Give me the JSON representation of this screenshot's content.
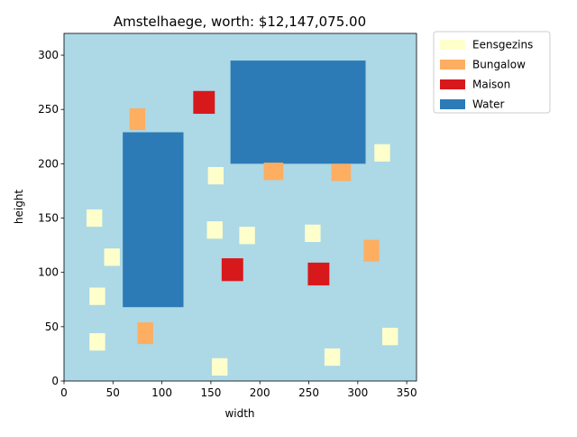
{
  "chart_data": {
    "type": "map",
    "title": "Amstelhaege, worth: $12,147,075.00",
    "xlabel": "width",
    "ylabel": "height",
    "xlim": [
      0,
      360
    ],
    "ylim": [
      0,
      320
    ],
    "xticks": [
      0,
      50,
      100,
      150,
      200,
      250,
      300,
      350
    ],
    "yticks": [
      0,
      50,
      100,
      150,
      200,
      250,
      300
    ],
    "background_color": "#add8e6",
    "legend_position": "outside-top-right",
    "legend": [
      {
        "label": "Eensgezins",
        "color": "#ffffcc"
      },
      {
        "label": "Bungalow",
        "color": "#fdae61"
      },
      {
        "label": "Maison",
        "color": "#d7191c"
      },
      {
        "label": "Water",
        "color": "#2c7bb6"
      }
    ],
    "water": [
      {
        "x": 60,
        "y": 68,
        "width": 62,
        "height": 161
      },
      {
        "x": 170,
        "y": 200,
        "width": 138,
        "height": 95
      }
    ],
    "houses": [
      {
        "type": "Eensgezins",
        "x": 23,
        "y": 142,
        "width": 16,
        "height": 16
      },
      {
        "type": "Eensgezins",
        "x": 41,
        "y": 106,
        "width": 16,
        "height": 16
      },
      {
        "type": "Eensgezins",
        "x": 26,
        "y": 70,
        "width": 16,
        "height": 16
      },
      {
        "type": "Eensgezins",
        "x": 26,
        "y": 28,
        "width": 16,
        "height": 16
      },
      {
        "type": "Eensgezins",
        "x": 147,
        "y": 181,
        "width": 16,
        "height": 16
      },
      {
        "type": "Eensgezins",
        "x": 146,
        "y": 131,
        "width": 16,
        "height": 16
      },
      {
        "type": "Eensgezins",
        "x": 179,
        "y": 126,
        "width": 16,
        "height": 16
      },
      {
        "type": "Eensgezins",
        "x": 151,
        "y": 5,
        "width": 16,
        "height": 16
      },
      {
        "type": "Eensgezins",
        "x": 246,
        "y": 128,
        "width": 16,
        "height": 16
      },
      {
        "type": "Eensgezins",
        "x": 266,
        "y": 14,
        "width": 16,
        "height": 16
      },
      {
        "type": "Eensgezins",
        "x": 317,
        "y": 202,
        "width": 16,
        "height": 16
      },
      {
        "type": "Eensgezins",
        "x": 325,
        "y": 33,
        "width": 16,
        "height": 16
      },
      {
        "type": "Bungalow",
        "x": 67,
        "y": 231,
        "width": 16,
        "height": 20
      },
      {
        "type": "Bungalow",
        "x": 75,
        "y": 34,
        "width": 16,
        "height": 20
      },
      {
        "type": "Bungalow",
        "x": 204,
        "y": 185,
        "width": 20,
        "height": 16
      },
      {
        "type": "Bungalow",
        "x": 273,
        "y": 184,
        "width": 20,
        "height": 16
      },
      {
        "type": "Bungalow",
        "x": 306,
        "y": 110,
        "width": 16,
        "height": 20
      },
      {
        "type": "Maison",
        "x": 132,
        "y": 246,
        "width": 22,
        "height": 21
      },
      {
        "type": "Maison",
        "x": 161,
        "y": 92,
        "width": 22,
        "height": 21
      },
      {
        "type": "Maison",
        "x": 249,
        "y": 88,
        "width": 22,
        "height": 21
      }
    ]
  }
}
